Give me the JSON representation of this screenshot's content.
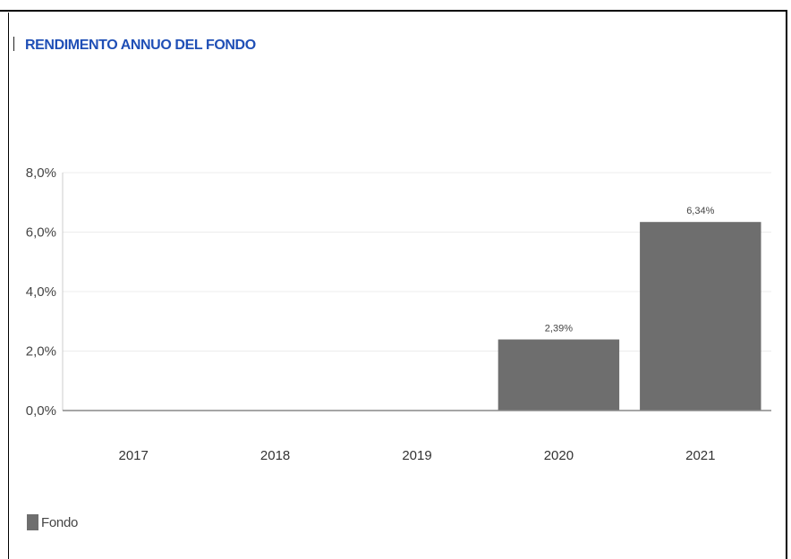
{
  "colors": {
    "title": "#1f4fb6",
    "bar": "#6e6e6e",
    "gridline": "#ececec",
    "axis": "#888888"
  },
  "chart_data": {
    "type": "bar",
    "title": "RENDIMENTO ANNUO DEL FONDO",
    "categories": [
      "2017",
      "2018",
      "2019",
      "2020",
      "2021"
    ],
    "series": [
      {
        "name": "Fondo",
        "values": [
          null,
          null,
          null,
          2.39,
          6.34
        ]
      }
    ],
    "data_labels": [
      "",
      "",
      "",
      "2,39%",
      "6,34%"
    ],
    "y_ticks": [
      0,
      2,
      4,
      6,
      8
    ],
    "y_tick_labels": [
      "0,0%",
      "2,0%",
      "4,0%",
      "6,0%",
      "8,0%"
    ],
    "ylim": [
      0,
      8
    ],
    "grid": true,
    "legend_position": "bottom-left",
    "xlabel": "",
    "ylabel": ""
  }
}
